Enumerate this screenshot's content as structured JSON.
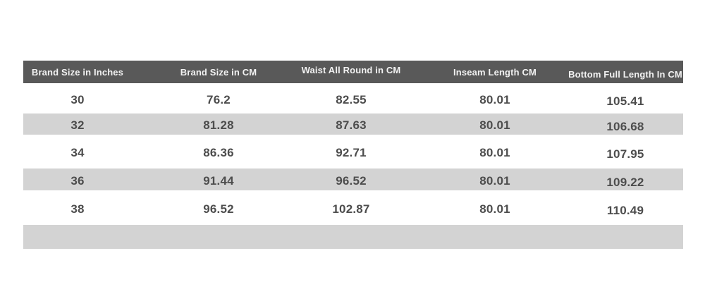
{
  "page": {
    "background": "#ffffff"
  },
  "size_chart": {
    "columns": [
      "Brand Size in Inches",
      "Brand Size in CM",
      "Waist All Round in CM",
      "Inseam Length CM",
      "Bottom Full Length In CM"
    ],
    "rows": [
      [
        "30",
        "76.2",
        "82.55",
        "80.01",
        "105.41"
      ],
      [
        "32",
        "81.28",
        "87.63",
        "80.01",
        "106.68"
      ],
      [
        "34",
        "86.36",
        "92.71",
        "80.01",
        "107.95"
      ],
      [
        "36",
        "91.44",
        "96.52",
        "80.01",
        "109.22"
      ],
      [
        "38",
        "96.52",
        "102.87",
        "80.01",
        "110.49"
      ],
      [
        "",
        "",
        "",
        "",
        ""
      ]
    ],
    "colors": {
      "page_background": "#ffffff",
      "header_background": "#595959",
      "header_text": "#f2f2f2",
      "stripe_background": "#d3d3d3",
      "row_background": "#ffffff",
      "data_text": "#4d4d4d"
    }
  }
}
